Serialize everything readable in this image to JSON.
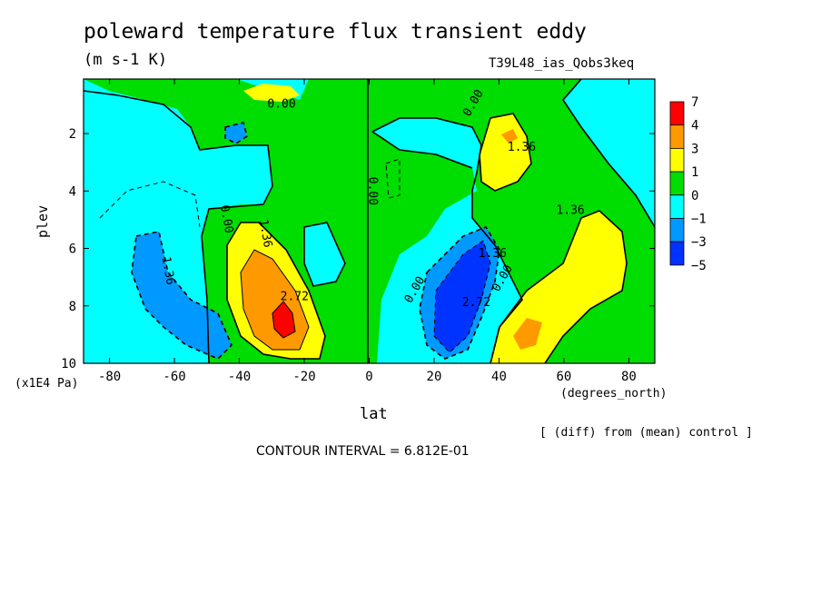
{
  "chart_data": {
    "type": "heatmap",
    "title": "poleward temperature flux transient eddy",
    "units": "(m s-1 K)",
    "run_label": "T39L48_ias_Qobs3keq",
    "xlabel": "lat",
    "x_units": "(degrees_north)",
    "ylabel": "plev",
    "y_units": "(x1E4 Pa)",
    "x_ticks": [
      "-80",
      "-60",
      "-40",
      "-20",
      "0",
      "20",
      "40",
      "60",
      "80"
    ],
    "x_tick_values": [
      -80,
      -60,
      -40,
      -20,
      0,
      20,
      40,
      60,
      80
    ],
    "y_ticks": [
      "2",
      "4",
      "6",
      "8",
      "10"
    ],
    "y_tick_values": [
      2,
      4,
      6,
      8,
      10
    ],
    "xlim": [
      -88,
      88
    ],
    "ylim": [
      10,
      0.1
    ],
    "y_inverted": true,
    "colorbar": {
      "labels": [
        "7",
        "4",
        "3",
        "1",
        "0",
        "−1",
        "−3",
        "−5"
      ],
      "colors": [
        "#ff0000",
        "#ff9900",
        "#ffff00",
        "#00dd00",
        "#00ffff",
        "#0099ff",
        "#0033ff"
      ]
    },
    "contour_labels": [
      {
        "text": "0.00",
        "lat": -27,
        "p": 1.1
      },
      {
        "text": "0.00",
        "lat": 33,
        "p": 1.0
      },
      {
        "text": "0.00",
        "lat": 0,
        "p": 4.0
      },
      {
        "text": "0.00",
        "lat": -45,
        "p": 5.0
      },
      {
        "text": "1.36",
        "lat": -33,
        "p": 5.5
      },
      {
        "text": "1.36",
        "lat": 47,
        "p": 2.6
      },
      {
        "text": "1.36",
        "lat": 62,
        "p": 4.8
      },
      {
        "text": "1.36",
        "lat": -63,
        "p": 6.8
      },
      {
        "text": "2.72",
        "lat": -23,
        "p": 7.8
      },
      {
        "text": "2.72",
        "lat": 33,
        "p": 8.0
      },
      {
        "text": "1.36",
        "lat": 38,
        "p": 6.3
      },
      {
        "text": "0.00",
        "lat": 15,
        "p": 7.5
      },
      {
        "text": "0.00",
        "lat": 42,
        "p": 7.1
      }
    ],
    "features": [
      {
        "name": "max positive",
        "lat": -26,
        "p": 8.5,
        "value_class": "7"
      },
      {
        "name": "min negative",
        "lat": 30,
        "p": 8.0,
        "value_class": "-5"
      },
      {
        "name": "secondary positive",
        "lat": 48,
        "p": 8.9,
        "value_class": "4"
      },
      {
        "name": "upper positive",
        "lat": 42,
        "p": 2.0,
        "value_class": "4"
      },
      {
        "name": "upper positive",
        "lat": -25,
        "p": 0.6,
        "value_class": "3"
      }
    ],
    "legend_position": "right"
  },
  "contour_interval_text": "CONTOUR INTERVAL = 6.812E-01",
  "diff_note": "[ (diff) from (mean) control ]"
}
